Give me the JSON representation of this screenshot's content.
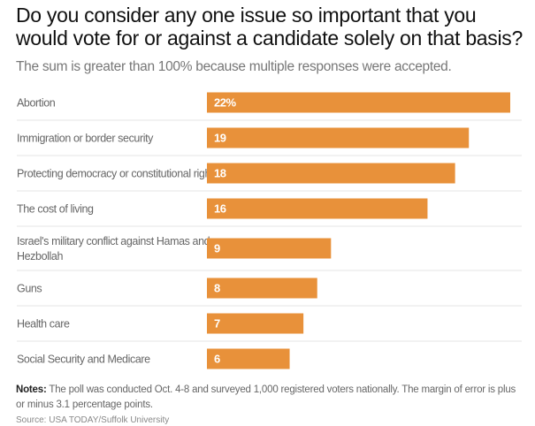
{
  "chart_data": {
    "type": "bar",
    "orientation": "horizontal",
    "title": "Do you consider any one issue so important that you would vote for or against a candidate solely on that basis?",
    "subtitle": "The sum is greater than 100% because multiple responses were accepted.",
    "categories": [
      [
        "Abortion"
      ],
      [
        "Immigration or border security"
      ],
      [
        "Protecting democracy or constitutional rights"
      ],
      [
        "The cost of living"
      ],
      [
        "Israel's military conflict against Hamas and",
        "Hezbollah"
      ],
      [
        "Guns"
      ],
      [
        "Health care"
      ],
      [
        "Social Security and Medicare"
      ]
    ],
    "values": [
      22,
      19,
      18,
      16,
      9,
      8,
      7,
      6
    ],
    "value_labels": [
      "22%",
      "19",
      "18",
      "16",
      "9",
      "8",
      "7",
      "6"
    ],
    "xlim": [
      0,
      22
    ],
    "grid": false,
    "colors": {
      "bar": "#e8913a",
      "bar_label": "#ffffff",
      "category_label": "#666666",
      "divider": "#e4e4e4"
    }
  },
  "notes": {
    "label": "Notes:",
    "text": " The poll was conducted Oct. 4-8 and surveyed 1,000 registered voters nationally. The margin of error is plus or minus 3.1 percentage points."
  },
  "source": {
    "text": "Source: USA TODAY/Suffolk University"
  }
}
